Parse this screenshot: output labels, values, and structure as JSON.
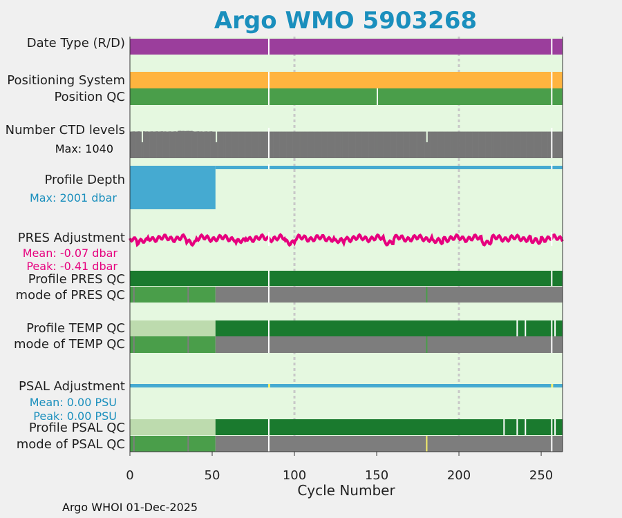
{
  "title": "Argo WMO 5903268",
  "footer": "Argo WHOI 01-Dec-2025",
  "labels": {
    "date_type": "Date Type (R/D)",
    "positioning_system": "Positioning System",
    "position_qc": "Position QC",
    "ctd_levels": "Number CTD levels",
    "ctd_max": "Max: 1040",
    "profile_depth": "Profile Depth",
    "depth_max": "Max: 2001 dbar",
    "pres_adjustment": "PRES Adjustment",
    "pres_mean": "Mean: -0.07 dbar",
    "pres_peak": "Peak: -0.41 dbar",
    "profile_pres_qc": "Profile PRES QC",
    "mode_pres_qc": "mode of PRES QC",
    "profile_temp_qc": "Profile TEMP QC",
    "mode_temp_qc": "mode of TEMP QC",
    "psal_adjustment": "PSAL Adjustment",
    "psal_mean": "Mean: 0.00 PSU",
    "psal_peak": "Peak: 0.00 PSU",
    "profile_psal_qc": "Profile PSAL QC",
    "mode_psal_qc": "mode of PSAL QC"
  },
  "chart_data": {
    "type": "bar",
    "xlabel": "Cycle Number",
    "xlim": [
      0,
      263
    ],
    "xticks": [
      0,
      50,
      100,
      150,
      200,
      250
    ],
    "vertical_reference_lines": [
      100,
      200
    ],
    "gap_cycles": [
      84
    ],
    "colors": {
      "background": "#e5f8e0",
      "date_type": "#9b3e9c",
      "positioning_system": "#ffb43f",
      "qc_good": "#4a9e4a",
      "qc_dark": "#1a7a2e",
      "qc_light": "#bddbae",
      "qc_grey": "#7d7d7d",
      "qc_yellow": "#f5ee6a",
      "ctd": "#767676",
      "depth": "#45aad1",
      "pres": "#e6007e",
      "psal": "#45aad1"
    },
    "date_type": {
      "value": "D",
      "cycles": [
        0,
        263
      ],
      "breaks": [
        84,
        256
      ]
    },
    "positioning_system": {
      "cycles": [
        0,
        263
      ],
      "breaks": [
        84,
        256
      ]
    },
    "position_qc": {
      "value": 1,
      "breaks": [
        84,
        150,
        256
      ]
    },
    "ctd_levels": {
      "max": 1040,
      "typical": 1000,
      "min_cycles": [
        7,
        52,
        180
      ]
    },
    "profile_depth": {
      "max_dbar": 2001,
      "segments": [
        {
          "from": 0,
          "to": 52,
          "depth_dbar": 2000
        },
        {
          "from": 52,
          "to": 263,
          "depth_dbar": 60
        }
      ]
    },
    "pres_adjustment": {
      "mean": -0.07,
      "peak": -0.41,
      "units": "dbar"
    },
    "profile_pres_qc": {
      "segments": [
        {
          "from": 0,
          "to": 263,
          "grade": "A"
        }
      ]
    },
    "mode_pres_qc": {
      "segments": [
        {
          "from": 0,
          "to": 52,
          "qc": 1
        },
        {
          "from": 52,
          "to": 263,
          "qc": 2
        }
      ]
    },
    "profile_temp_qc": {
      "segments": [
        {
          "from": 0,
          "to": 52,
          "grade": "light"
        },
        {
          "from": 52,
          "to": 263,
          "grade": "A"
        }
      ],
      "breaks": [
        84,
        235,
        240,
        256,
        258
      ]
    },
    "mode_temp_qc": {
      "segments": [
        {
          "from": 0,
          "to": 52,
          "qc": 1
        },
        {
          "from": 52,
          "to": 263,
          "qc": 2
        }
      ]
    },
    "psal_adjustment": {
      "mean": 0.0,
      "peak": 0.0,
      "units": "PSU"
    },
    "profile_psal_qc": {
      "segments": [
        {
          "from": 0,
          "to": 52,
          "grade": "light"
        },
        {
          "from": 52,
          "to": 263,
          "grade": "A"
        }
      ],
      "breaks": [
        84,
        227,
        235,
        240,
        256,
        258
      ]
    },
    "mode_psal_qc": {
      "segments": [
        {
          "from": 0,
          "to": 52,
          "qc": 1
        },
        {
          "from": 52,
          "to": 263,
          "qc": 2
        }
      ],
      "flag_cycles": [
        180
      ]
    }
  }
}
